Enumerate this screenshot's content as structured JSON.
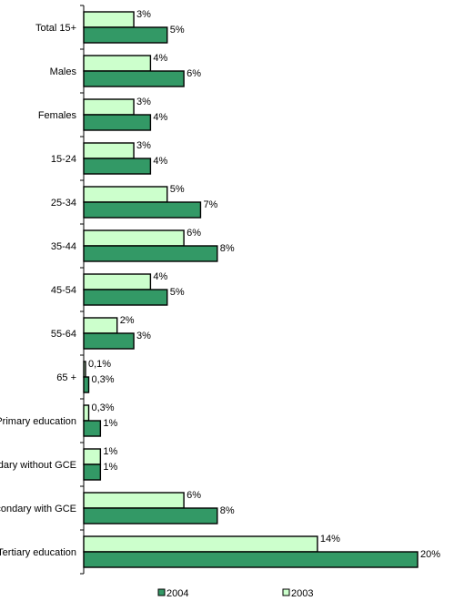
{
  "chart_data": {
    "type": "bar",
    "orientation": "horizontal",
    "categories": [
      "Total 15+",
      "Males",
      "Females",
      "15-24",
      "25-34",
      "35-44",
      "45-54",
      "55-64",
      "65 +",
      "Primary education",
      "Secondary without GCE",
      "Secondary with GCE",
      "Tertiary education"
    ],
    "series": [
      {
        "name": "2003",
        "color": "#ccffcc",
        "values": [
          3,
          4,
          3,
          3,
          5,
          6,
          4,
          2,
          0.1,
          0.3,
          1,
          6,
          14
        ],
        "labels": [
          "3%",
          "4%",
          "3%",
          "3%",
          "5%",
          "6%",
          "4%",
          "2%",
          "0,1%",
          "0,3%",
          "1%",
          "6%",
          "14%"
        ]
      },
      {
        "name": "2004",
        "color": "#339966",
        "values": [
          5,
          6,
          4,
          4,
          7,
          8,
          5,
          3,
          0.3,
          1,
          1,
          8,
          20
        ],
        "labels": [
          "5%",
          "6%",
          "4%",
          "4%",
          "7%",
          "8%",
          "5%",
          "3%",
          "0,3%",
          "1%",
          "1%",
          "8%",
          "20%"
        ]
      }
    ],
    "legend": {
      "placement": "bottom",
      "order": [
        "2004",
        "2003"
      ]
    },
    "grid": false,
    "xlabel": "",
    "ylabel": "",
    "xlim": [
      0,
      20
    ]
  }
}
